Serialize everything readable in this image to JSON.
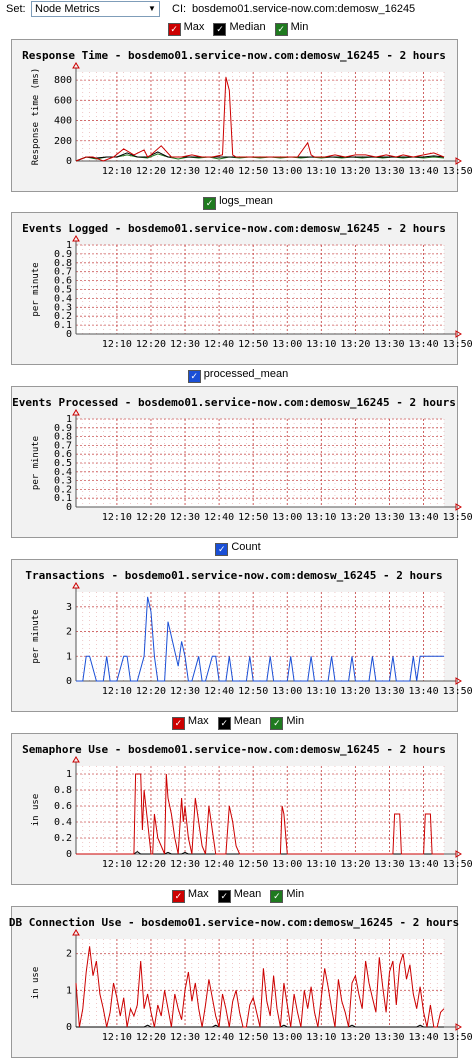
{
  "toolbar": {
    "set_label": "Set:",
    "set_value": "Node Metrics",
    "ci_label": "CI:",
    "ci_value": "bosdemo01.service-now.com:demosw_16245"
  },
  "colors": {
    "max": "#cc0000",
    "median_mean": "#000000",
    "min": "#1f7a1f",
    "blue": "#1a4fd6",
    "grid": "#c43c3c"
  },
  "legends": [
    {
      "items": [
        {
          "label": "Max",
          "color": "#cc0000"
        },
        {
          "label": "Median",
          "color": "#000000"
        },
        {
          "label": "Min",
          "color": "#1f7a1f"
        }
      ]
    },
    {
      "items": [
        {
          "label": "logs_mean",
          "color": "#1f7a1f"
        }
      ]
    },
    {
      "items": [
        {
          "label": "processed_mean",
          "color": "#1a4fd6"
        }
      ]
    },
    {
      "items": [
        {
          "label": "Count",
          "color": "#1a4fd6"
        }
      ]
    },
    {
      "items": [
        {
          "label": "Max",
          "color": "#cc0000"
        },
        {
          "label": "Mean",
          "color": "#000000"
        },
        {
          "label": "Min",
          "color": "#1f7a1f"
        }
      ]
    },
    {
      "items": [
        {
          "label": "Max",
          "color": "#cc0000"
        },
        {
          "label": "Mean",
          "color": "#000000"
        },
        {
          "label": "Min",
          "color": "#1f7a1f"
        }
      ]
    }
  ],
  "chart_data": [
    {
      "type": "line",
      "title": "Response Time - bosdemo01.service-now.com:demosw_16245 - 2 hours",
      "ylabel": "Response time (ms)",
      "xtick_labels": [
        "12:10",
        "12:20",
        "12:30",
        "12:40",
        "12:50",
        "13:00",
        "13:10",
        "13:20",
        "13:30",
        "13:40",
        "13:50"
      ],
      "yticks": [
        0,
        200,
        400,
        600,
        800
      ],
      "ylim": [
        0,
        880
      ],
      "series": [
        {
          "name": "Max",
          "color": "#cc0000",
          "x": [
            0,
            3,
            5,
            8,
            11,
            14,
            17,
            20,
            21,
            22,
            25,
            28,
            31,
            34,
            37,
            40,
            43,
            44,
            45,
            46,
            47,
            50,
            53,
            56,
            59,
            62,
            65,
            68,
            69,
            70,
            73,
            76,
            79,
            82,
            85,
            88,
            91,
            94,
            96,
            99,
            102,
            105,
            108
          ],
          "values": [
            0,
            40,
            40,
            0,
            40,
            120,
            60,
            110,
            40,
            60,
            150,
            40,
            40,
            60,
            40,
            40,
            60,
            830,
            700,
            60,
            40,
            40,
            40,
            40,
            40,
            40,
            40,
            180,
            60,
            40,
            40,
            60,
            40,
            60,
            60,
            40,
            60,
            40,
            60,
            40,
            60,
            80,
            40
          ]
        },
        {
          "name": "Median",
          "color": "#000000",
          "x": [
            0,
            3,
            6,
            9,
            12,
            15,
            18,
            21,
            24,
            27,
            30,
            33,
            36,
            39,
            42,
            45,
            48,
            51,
            54,
            57,
            60,
            63,
            66,
            69,
            72,
            75,
            78,
            81,
            84,
            87,
            90,
            93,
            96,
            99,
            102,
            105,
            108
          ],
          "values": [
            0,
            40,
            30,
            40,
            40,
            80,
            40,
            40,
            90,
            40,
            40,
            40,
            40,
            40,
            40,
            40,
            40,
            40,
            40,
            40,
            40,
            40,
            40,
            40,
            40,
            40,
            40,
            40,
            40,
            40,
            40,
            40,
            40,
            40,
            40,
            50,
            40
          ]
        },
        {
          "name": "Min",
          "color": "#1f7a1f",
          "x": [
            0,
            3,
            6,
            9,
            12,
            15,
            18,
            21,
            24,
            27,
            30,
            33,
            36,
            39,
            42,
            45,
            48,
            51,
            54,
            57,
            60,
            63,
            66,
            69,
            72,
            75,
            78,
            81,
            84,
            87,
            90,
            93,
            96,
            99,
            102,
            105,
            108
          ],
          "values": [
            0,
            40,
            20,
            40,
            40,
            60,
            40,
            30,
            70,
            40,
            20,
            40,
            30,
            40,
            20,
            40,
            30,
            40,
            30,
            40,
            30,
            40,
            30,
            40,
            30,
            40,
            30,
            40,
            30,
            40,
            30,
            40,
            30,
            40,
            30,
            40,
            30
          ]
        }
      ]
    },
    {
      "type": "line",
      "title": "Events Logged - bosdemo01.service-now.com:demosw_16245 - 2 hours",
      "ylabel": "per minute",
      "xtick_labels": [
        "12:10",
        "12:20",
        "12:30",
        "12:40",
        "12:50",
        "13:00",
        "13:10",
        "13:20",
        "13:30",
        "13:40",
        "13:50"
      ],
      "yticks": [
        0,
        0.1,
        0.2,
        0.3,
        0.4,
        0.5,
        0.6,
        0.7,
        0.8,
        0.9,
        1
      ],
      "ylim": [
        0,
        1
      ],
      "series": []
    },
    {
      "type": "line",
      "title": "Events Processed - bosdemo01.service-now.com:demosw_16245 - 2 hours",
      "ylabel": "per minute",
      "xtick_labels": [
        "12:10",
        "12:20",
        "12:30",
        "12:40",
        "12:50",
        "13:00",
        "13:10",
        "13:20",
        "13:30",
        "13:40",
        "13:50"
      ],
      "yticks": [
        0,
        0.1,
        0.2,
        0.3,
        0.4,
        0.5,
        0.6,
        0.7,
        0.8,
        0.9,
        1
      ],
      "ylim": [
        0,
        1
      ],
      "series": []
    },
    {
      "type": "line",
      "title": "Transactions - bosdemo01.service-now.com:demosw_16245 - 2 hours",
      "ylabel": "per minute",
      "xtick_labels": [
        "12:10",
        "12:20",
        "12:30",
        "12:40",
        "12:50",
        "13:00",
        "13:10",
        "13:20",
        "13:30",
        "13:40",
        "13:50"
      ],
      "yticks": [
        0,
        1,
        2,
        3
      ],
      "ylim": [
        0,
        3.6
      ],
      "series": [
        {
          "name": "Count",
          "color": "#1a4fd6",
          "x": [
            0,
            2,
            3,
            4,
            6,
            8,
            9,
            10,
            12,
            14,
            15,
            16,
            18,
            20,
            21,
            22,
            23,
            24,
            26,
            27,
            28,
            30,
            31,
            32,
            33,
            34,
            36,
            37,
            38,
            40,
            41,
            42,
            44,
            45,
            46,
            48,
            50,
            51,
            52,
            54,
            56,
            57,
            58,
            60,
            62,
            63,
            64,
            66,
            68,
            69,
            70,
            72,
            74,
            75,
            76,
            78,
            80,
            81,
            82,
            84,
            86,
            87,
            88,
            90,
            92,
            93,
            94,
            96,
            98,
            99,
            100,
            101,
            102,
            103,
            104,
            106,
            107,
            108
          ],
          "values": [
            0,
            0,
            1,
            1,
            0,
            0,
            1,
            0,
            0,
            1,
            1,
            0,
            0,
            1,
            3.4,
            2.8,
            1,
            0,
            0,
            2.4,
            1.8,
            0.6,
            1.6,
            1,
            0,
            0,
            1,
            0,
            0,
            1,
            1,
            0,
            0,
            1,
            0,
            0,
            0,
            1,
            0,
            0,
            0,
            1,
            0,
            0,
            0,
            1,
            0,
            0,
            0,
            1,
            0,
            0,
            0,
            1,
            0,
            0,
            0,
            1,
            0,
            0,
            0,
            1,
            0,
            0,
            0,
            1,
            0,
            0,
            0,
            1,
            0,
            1,
            1,
            1,
            1,
            1,
            1,
            1
          ]
        }
      ]
    },
    {
      "type": "line",
      "title": "Semaphore Use - bosdemo01.service-now.com:demosw_16245 - 2 hours",
      "ylabel": "in use",
      "xtick_labels": [
        "12:10",
        "12:20",
        "12:30",
        "12:40",
        "12:50",
        "13:00",
        "13:10",
        "13:20",
        "13:30",
        "13:40",
        "13:50"
      ],
      "yticks": [
        0,
        0.2,
        0.4,
        0.6,
        0.8,
        1
      ],
      "ylim": [
        0,
        1.1
      ],
      "series": [
        {
          "name": "Max",
          "color": "#cc0000",
          "x": [
            0,
            17,
            17.5,
            19,
            19.5,
            20,
            21,
            22,
            22.5,
            23,
            24,
            26,
            26.5,
            27,
            28,
            29,
            30,
            31,
            31.5,
            32,
            33,
            34,
            35,
            36,
            37,
            38,
            39,
            40,
            41,
            44,
            45,
            46,
            47,
            48,
            49,
            55,
            60,
            60.5,
            61,
            62,
            80,
            93,
            93.5,
            95,
            95.5,
            96,
            102,
            102.5,
            104,
            104.5,
            105,
            108
          ],
          "values": [
            0,
            0,
            1,
            1,
            0.3,
            0.8,
            0.4,
            0,
            0,
            0.5,
            0.2,
            0,
            1,
            0.7,
            0.5,
            0.2,
            0,
            0.7,
            0.4,
            0.6,
            0.2,
            0,
            0.7,
            0.4,
            0.1,
            0,
            0.6,
            0.3,
            0,
            0,
            0.6,
            0.4,
            0.1,
            0,
            0,
            0,
            0,
            0.6,
            0.5,
            0,
            0,
            0,
            0.5,
            0.5,
            0,
            0,
            0,
            0.5,
            0.5,
            0,
            0,
            0
          ]
        },
        {
          "name": "Mean",
          "color": "#000000",
          "x": [
            0,
            17,
            18,
            19,
            26,
            27,
            28,
            31,
            32,
            33,
            108
          ],
          "values": [
            0,
            0,
            0.03,
            0,
            0,
            0.02,
            0,
            0,
            0.02,
            0,
            0
          ]
        }
      ]
    },
    {
      "type": "line",
      "title": "DB Connection Use - bosdemo01.service-now.com:demosw_16245 - 2 hours",
      "ylabel": "in use",
      "xtick_labels": [
        "12:10",
        "12:20",
        "12:30",
        "12:40",
        "12:50",
        "13:00",
        "13:10",
        "13:20",
        "13:30",
        "13:40",
        "13:50"
      ],
      "yticks": [
        0,
        1,
        2
      ],
      "ylim": [
        0,
        2.4
      ],
      "series": [
        {
          "name": "Max",
          "color": "#cc0000",
          "x": [
            0,
            1,
            2,
            3,
            4,
            5,
            6,
            7,
            8,
            9,
            10,
            11,
            12,
            13,
            14,
            15,
            16,
            17,
            18,
            19,
            20,
            21,
            22,
            23,
            24,
            25,
            26,
            27,
            28,
            29,
            30,
            31,
            32,
            33,
            34,
            35,
            36,
            37,
            38,
            39,
            40,
            41,
            42,
            43,
            44,
            45,
            46,
            47,
            48,
            49,
            50,
            51,
            52,
            53,
            54,
            55,
            56,
            57,
            58,
            59,
            60,
            61,
            62,
            63,
            64,
            65,
            66,
            67,
            68,
            69,
            70,
            71,
            72,
            73,
            74,
            75,
            76,
            77,
            78,
            79,
            80,
            81,
            82,
            83,
            84,
            85,
            86,
            87,
            88,
            89,
            90,
            91,
            92,
            93,
            94,
            95,
            96,
            97,
            98,
            99,
            100,
            101,
            102,
            103,
            104,
            105,
            106,
            107,
            108
          ],
          "values": [
            1.2,
            0,
            0.5,
            1.5,
            2.2,
            1.4,
            1.8,
            0.9,
            0.5,
            0,
            0.4,
            1.2,
            0.8,
            0.3,
            0.8,
            0,
            0.5,
            0.3,
            0.6,
            1.8,
            0.5,
            0.9,
            0.4,
            0,
            0.6,
            0.3,
            1.0,
            0.5,
            0,
            0.9,
            0.5,
            0.2,
            1.0,
            1.5,
            0.7,
            1.2,
            0.5,
            0,
            0.6,
            1.3,
            0.8,
            0.3,
            0,
            0.9,
            0.5,
            0,
            0.7,
            1.0,
            0.4,
            0,
            0,
            0.6,
            0.8,
            0.4,
            0,
            1.6,
            0.7,
            0.3,
            1.4,
            0.5,
            0,
            1.2,
            0.6,
            0,
            0.9,
            0.4,
            0,
            1.0,
            0.5,
            1.1,
            0.4,
            0,
            0.8,
            1.6,
            1.1,
            0.5,
            0,
            1.3,
            0.7,
            0.4,
            0,
            1.2,
            1.4,
            0.9,
            0.5,
            1.8,
            1.2,
            0.8,
            0.4,
            1.9,
            1.1,
            0.4,
            1.5,
            1.8,
            0.6,
            1.7,
            2.0,
            1.3,
            1.7,
            0.9,
            0.5,
            1.1,
            0.4,
            0,
            0.6,
            0,
            0,
            0.4,
            0.5
          ]
        },
        {
          "name": "Mean",
          "color": "#000000",
          "x": [
            0,
            20,
            21,
            22,
            40,
            41,
            42,
            60,
            61,
            62,
            80,
            81,
            82,
            100,
            101,
            102,
            108
          ],
          "values": [
            0,
            0,
            0.05,
            0,
            0,
            0.05,
            0,
            0,
            0.05,
            0,
            0,
            0.05,
            0,
            0,
            0.05,
            0,
            0
          ]
        }
      ]
    }
  ]
}
